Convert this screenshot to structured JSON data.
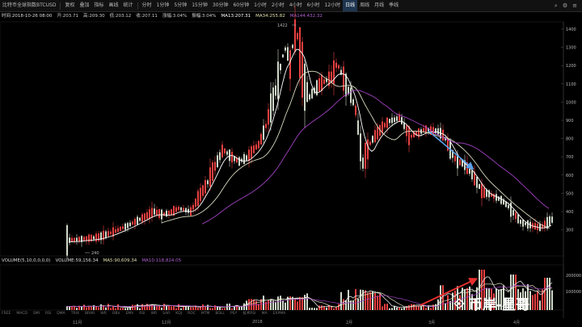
{
  "toolbar": {
    "items": [
      "比特币全球指数BTCUSD",
      "复权",
      "叠加",
      "指标",
      "画线",
      "统计",
      "分时",
      "1分钟",
      "5分钟",
      "15分钟",
      "30分钟",
      "60分钟",
      "1小时",
      "2小时",
      "4小时",
      "6小时",
      "12小时",
      "日线",
      "周线",
      "月线",
      "季线"
    ],
    "active": "日线"
  },
  "info": {
    "date": "时间:2018-10-26 08:00",
    "open": "开:203.71",
    "high": "高:209.30",
    "low": "低:203.12",
    "close": "收:207.11",
    "change": "涨幅:3.04%",
    "amp": "振幅:3.04%",
    "ma13": "MA13:207.31",
    "ma34": "MA34:255.82",
    "ma_extra": "MA144:432.32"
  },
  "price_axis": [
    "1400",
    "1300",
    "1200",
    "1100",
    "1000",
    "900",
    "800",
    "700",
    "600",
    "500",
    "400",
    "300"
  ],
  "labels": {
    "high": "1422",
    "low": "240"
  },
  "volume": {
    "title": "VOLUME(5,10,0,0,0,0)",
    "vol": "VOLUME:59,156.34",
    "ma5": "MA5:90,609.34",
    "ma10": "MA10:118,824.05",
    "axis_top": "200000",
    "axis_mid": "100000"
  },
  "indicators": [
    "FREE",
    "MACD",
    "SMI",
    "RSI",
    "DMA",
    "TRIX",
    "BRAR",
    "WR",
    "OBV",
    "EMV",
    "RSI",
    "WR",
    "SAR",
    "KDJ",
    "ROC",
    "MTM",
    "BOLL",
    "PSY",
    "技术RSI",
    "MA",
    "EXPMA"
  ],
  "dates": [
    "11月",
    "12月",
    "2018",
    "2月",
    "3月",
    "4月"
  ],
  "watermark": "币岸-星哥",
  "colors": {
    "up": "#e84040",
    "down": "#cfd8c8",
    "ma_fast": "#ffffff",
    "ma_slow": "#d9d9c0",
    "ma_long": "#a040c0",
    "arrow_blue": "#5aa0e8",
    "arrow_red": "#e83030"
  }
}
